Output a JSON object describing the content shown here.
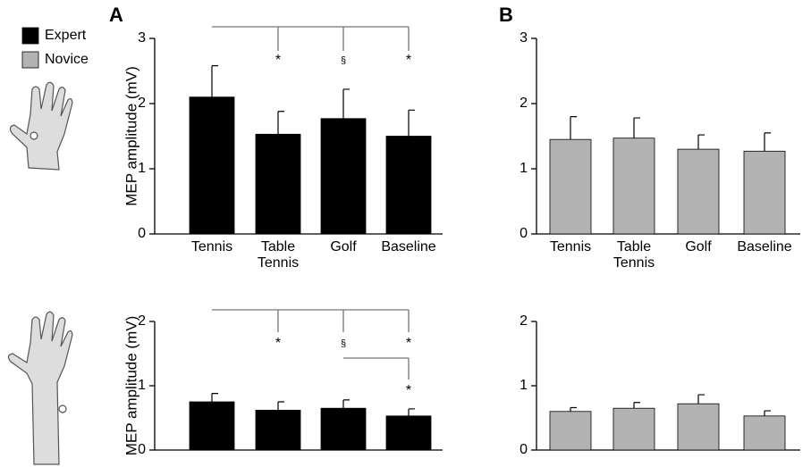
{
  "chart_data": [
    {
      "type": "bar",
      "panel": "A",
      "ylabel": "MEP amplitude (mV)",
      "categories": [
        "Tennis",
        "Table Tennis",
        "Golf",
        "Baseline"
      ],
      "series": [
        {
          "name": "Expert",
          "color": "#000000",
          "values": [
            2.1,
            1.53,
            1.77,
            1.5
          ],
          "errors": [
            0.48,
            0.35,
            0.45,
            0.4
          ]
        }
      ],
      "ylim": [
        0,
        3
      ],
      "yticks": [
        0,
        1,
        2,
        3
      ],
      "annotations": [
        "*",
        "§",
        "*"
      ]
    },
    {
      "type": "bar",
      "panel": "B",
      "categories": [
        "Tennis",
        "Table Tennis",
        "Golf",
        "Baseline"
      ],
      "series": [
        {
          "name": "Novice",
          "color": "#b3b3b3",
          "values": [
            1.45,
            1.47,
            1.3,
            1.27
          ],
          "errors": [
            0.35,
            0.31,
            0.22,
            0.28
          ]
        }
      ],
      "ylim": [
        0,
        3
      ],
      "yticks": [
        0,
        1,
        2,
        3
      ]
    },
    {
      "type": "bar",
      "ylabel": "MEP amplitude (mV)",
      "series": [
        {
          "color": "#000000",
          "values": [
            0.75,
            0.62,
            0.65,
            0.53
          ],
          "errors": [
            0.13,
            0.13,
            0.13,
            0.11
          ]
        }
      ],
      "ylim": [
        0,
        2
      ],
      "yticks": [
        0,
        1,
        2
      ],
      "annotations": [
        "*",
        "§",
        "*",
        "*"
      ]
    },
    {
      "type": "bar",
      "series": [
        {
          "color": "#b3b3b3",
          "values": [
            0.6,
            0.65,
            0.72,
            0.53
          ],
          "errors": [
            0.06,
            0.09,
            0.14,
            0.08
          ]
        }
      ],
      "ylim": [
        0,
        2
      ],
      "yticks": [
        0,
        1,
        2
      ]
    }
  ]
}
